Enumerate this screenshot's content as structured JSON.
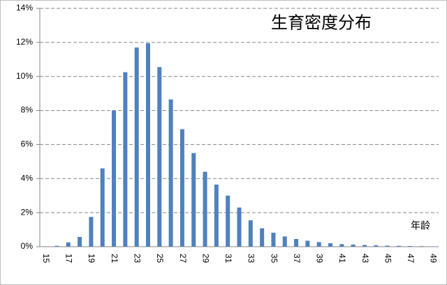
{
  "chart_data": {
    "type": "bar",
    "title": "生育密度分布",
    "x_label": "年龄",
    "categories": [
      "15",
      null,
      "17",
      null,
      "19",
      null,
      "21",
      null,
      "23",
      null,
      "25",
      null,
      "27",
      null,
      "29",
      null,
      "31",
      null,
      "33",
      null,
      "35",
      null,
      "37",
      null,
      "39",
      null,
      "41",
      null,
      "43",
      null,
      "45",
      null,
      "47",
      null,
      "49"
    ],
    "values": [
      0.02,
      0.05,
      0.25,
      0.57,
      1.75,
      4.6,
      8.0,
      10.25,
      11.7,
      11.95,
      10.55,
      8.65,
      6.9,
      5.5,
      4.4,
      3.65,
      3.0,
      2.3,
      1.55,
      1.08,
      0.82,
      0.6,
      0.45,
      0.35,
      0.27,
      0.2,
      0.15,
      0.12,
      0.1,
      0.08,
      0.06,
      0.05,
      0.04,
      0.03,
      0.02
    ],
    "color": "#4f81bd",
    "ylim": [
      0,
      14
    ],
    "yticks": [
      {
        "value": 0,
        "label": "0%"
      },
      {
        "value": 2,
        "label": "2%"
      },
      {
        "value": 4,
        "label": "4%"
      },
      {
        "value": 6,
        "label": "6%"
      },
      {
        "value": 8,
        "label": "8%"
      },
      {
        "value": 10,
        "label": "10%"
      },
      {
        "value": 12,
        "label": "12%"
      },
      {
        "value": 14,
        "label": "14%"
      }
    ],
    "grid": true
  }
}
